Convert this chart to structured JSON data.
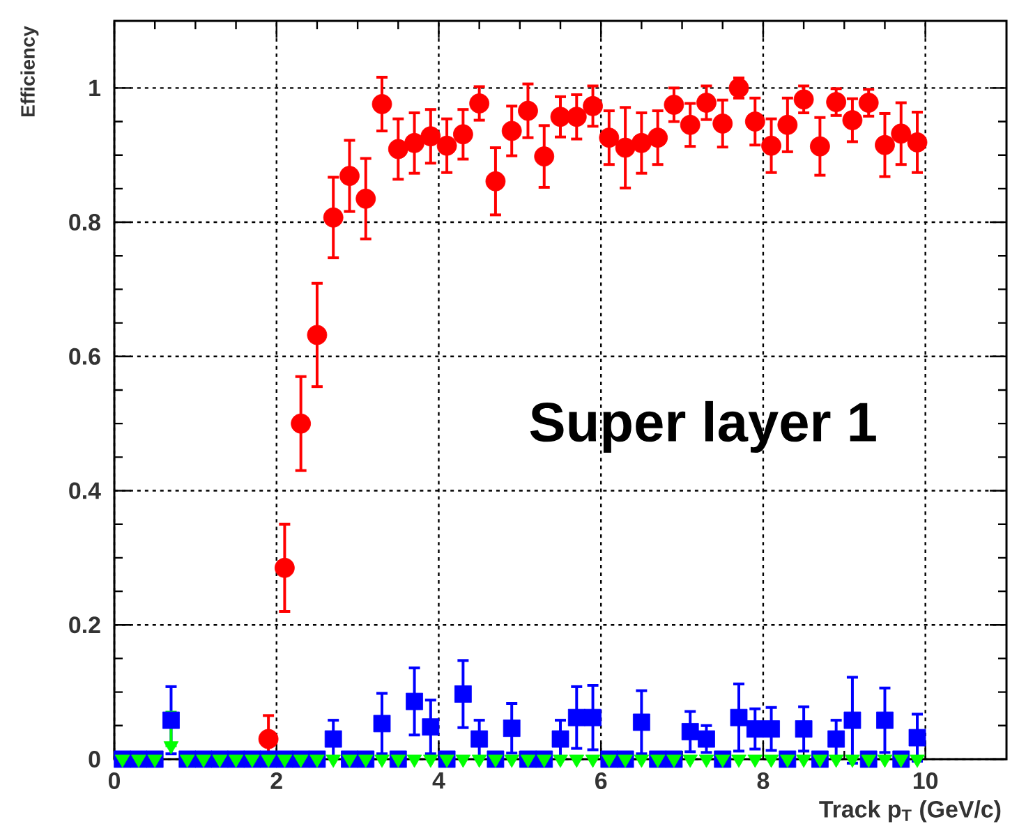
{
  "chart_data": {
    "type": "scatter",
    "xlabel": "Track p$_{T}$ (GeV/c)",
    "ylabel": "Efficiency",
    "xlim": [
      0,
      11
    ],
    "ylim": [
      0,
      1.1
    ],
    "xticks": [
      0,
      2,
      4,
      6,
      8,
      10
    ],
    "yticks": [
      0,
      0.2,
      0.4,
      0.6,
      0.8,
      1
    ],
    "grid": true,
    "annotations": [
      "Super layer 1"
    ],
    "series": [
      {
        "color": "#0000ff",
        "marker": "square",
        "x": [
          0.1,
          0.3,
          0.5,
          0.7,
          0.9,
          1.1,
          1.3,
          1.5,
          1.7,
          1.9,
          2.1,
          2.3,
          2.5,
          2.7,
          2.9,
          3.1,
          3.3,
          3.5,
          3.7,
          3.9,
          4.1,
          4.3,
          4.5,
          4.7,
          4.9,
          5.1,
          5.3,
          5.5,
          5.7,
          5.9,
          6.1,
          6.3,
          6.5,
          6.7,
          6.9,
          7.1,
          7.3,
          7.5,
          7.7,
          7.9,
          8.1,
          8.3,
          8.5,
          8.7,
          8.9,
          9.1,
          9.3,
          9.5,
          9.7,
          9.9
        ],
        "values": [
          0,
          0,
          0,
          0.058,
          0,
          0,
          0,
          0,
          0,
          0,
          0,
          0,
          0,
          0.03,
          0,
          0,
          0.053,
          0,
          0.086,
          0.048,
          0,
          0.097,
          0.03,
          0,
          0.046,
          0,
          0,
          0.03,
          0.062,
          0.062,
          0,
          0,
          0.055,
          0,
          0,
          0.041,
          0.03,
          0,
          0.062,
          0.045,
          0.045,
          0,
          0.045,
          0,
          0.03,
          0.058,
          0,
          0.058,
          0,
          0.032
        ],
        "errors": [
          null,
          null,
          null,
          0.05,
          null,
          null,
          null,
          null,
          null,
          null,
          null,
          null,
          null,
          0.028,
          null,
          null,
          0.045,
          null,
          0.05,
          0.04,
          null,
          0.05,
          0.028,
          null,
          0.037,
          null,
          null,
          0.028,
          0.046,
          0.048,
          null,
          null,
          0.047,
          null,
          null,
          0.03,
          0.02,
          null,
          0.05,
          0.03,
          0.032,
          null,
          0.033,
          null,
          0.028,
          0.064,
          null,
          0.048,
          null,
          0.035
        ]
      },
      {
        "color": "#00ff00",
        "marker": "triangle",
        "x": [
          0.1,
          0.3,
          0.5,
          0.7,
          0.9,
          1.1,
          1.3,
          1.5,
          1.7,
          1.9,
          2.1,
          2.3,
          2.5,
          2.7,
          2.9,
          3.1,
          3.3,
          3.5,
          3.7,
          3.9,
          4.1,
          4.3,
          4.5,
          4.7,
          4.9,
          5.1,
          5.3,
          5.5,
          5.7,
          5.9,
          6.1,
          6.3,
          6.5,
          6.7,
          6.9,
          7.1,
          7.3,
          7.5,
          7.7,
          7.9,
          8.1,
          8.3,
          8.5,
          8.7,
          8.9,
          9.1,
          9.3,
          9.5,
          9.7,
          9.9
        ],
        "values": [
          0,
          0,
          0,
          0.02,
          0,
          0,
          0,
          0,
          0,
          0,
          0,
          0,
          0,
          0,
          0,
          0,
          0,
          0,
          0,
          0,
          0,
          0,
          0,
          0,
          0,
          0,
          0,
          0,
          0,
          0,
          0,
          0,
          0,
          0,
          0,
          0,
          0,
          0,
          0,
          0,
          0,
          0,
          0,
          0,
          0,
          0,
          0,
          0,
          0,
          0
        ],
        "errors": [
          null,
          null,
          null,
          [
            0.02,
            0.07
          ],
          null,
          null,
          null,
          null,
          null,
          null,
          null,
          null,
          null,
          null,
          null,
          null,
          null,
          null,
          null,
          null,
          null,
          null,
          null,
          null,
          null,
          null,
          null,
          null,
          null,
          null,
          null,
          null,
          null,
          null,
          null,
          null,
          null,
          null,
          null,
          null,
          null,
          null,
          null,
          null,
          null,
          null,
          null,
          null,
          null,
          null
        ]
      },
      {
        "color": "#ff0000",
        "marker": "circle",
        "x": [
          1.9,
          2.1,
          2.3,
          2.5,
          2.7,
          2.9,
          3.1,
          3.3,
          3.5,
          3.7,
          3.9,
          4.1,
          4.3,
          4.5,
          4.7,
          4.9,
          5.1,
          5.3,
          5.5,
          5.7,
          5.9,
          6.1,
          6.3,
          6.5,
          6.7,
          6.9,
          7.1,
          7.3,
          7.5,
          7.7,
          7.9,
          8.1,
          8.3,
          8.5,
          8.7,
          8.9,
          9.1,
          9.3,
          9.5,
          9.7,
          9.9
        ],
        "values": [
          0.03,
          0.285,
          0.5,
          0.632,
          0.807,
          0.869,
          0.835,
          0.976,
          0.909,
          0.918,
          0.928,
          0.914,
          0.931,
          0.977,
          0.861,
          0.936,
          0.966,
          0.898,
          0.957,
          0.957,
          0.973,
          0.926,
          0.911,
          0.918,
          0.926,
          0.975,
          0.945,
          0.978,
          0.947,
          1.0,
          0.95,
          0.914,
          0.945,
          0.983,
          0.913,
          0.979,
          0.952,
          0.978,
          0.915,
          0.932,
          0.919
        ],
        "errors": [
          0.035,
          0.065,
          0.07,
          0.077,
          0.06,
          0.053,
          0.06,
          0.04,
          0.045,
          0.045,
          0.04,
          0.04,
          0.037,
          0.025,
          0.05,
          0.037,
          0.04,
          0.046,
          0.03,
          0.033,
          0.03,
          0.04,
          0.06,
          0.045,
          0.04,
          0.025,
          0.032,
          0.025,
          0.035,
          0.015,
          0.035,
          0.04,
          0.04,
          0.02,
          0.043,
          0.02,
          0.032,
          0.02,
          0.047,
          0.046,
          0.045
        ]
      }
    ]
  }
}
